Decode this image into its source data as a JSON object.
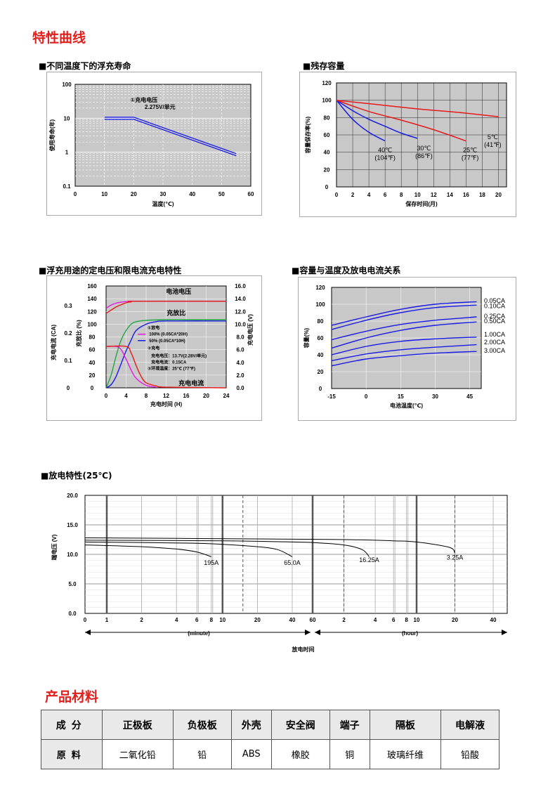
{
  "section_titles": {
    "curves": "特性曲线",
    "materials": "产品材料"
  },
  "chart_data": [
    {
      "id": "float_life",
      "type": "line",
      "title": "■不同温度下的浮充寿命",
      "xlabel": "温度(℃)",
      "ylabel": "使用寿命(年)",
      "x_ticks": [
        "0",
        "10",
        "20",
        "30",
        "40",
        "50",
        "60"
      ],
      "y_ticks": [
        "100",
        "10",
        "1",
        "0.1"
      ],
      "xlim": [
        0,
        60
      ],
      "ylim": [
        0.1,
        100
      ],
      "y_scale": "log",
      "annotation": [
        "①充电电压",
        "2.275V/单元"
      ],
      "series": [
        {
          "x": [
            10,
            20,
            55
          ],
          "y": [
            10,
            10,
            0.85
          ],
          "color": "#1a1ae6"
        }
      ]
    },
    {
      "id": "residual_capacity",
      "type": "line",
      "title": "■残存容量",
      "xlabel": "保存时间(月)",
      "ylabel": "容量保存率(%)",
      "x_ticks": [
        "0",
        "2",
        "4",
        "6",
        "8",
        "10",
        "12",
        "14",
        "16",
        "18",
        "20"
      ],
      "y_ticks": [
        "120",
        "100",
        "80",
        "60",
        "40",
        "20",
        "0"
      ],
      "xlim": [
        0,
        21
      ],
      "ylim": [
        0,
        120
      ],
      "series": [
        {
          "name_lines": [
            "40℃",
            "(104℉)"
          ],
          "color": "#1a1ae6",
          "x": [
            0,
            2,
            4,
            6
          ],
          "y": [
            100,
            78,
            63,
            53
          ]
        },
        {
          "name_lines": [
            "30℃",
            "(86℉)"
          ],
          "color": "#1a1ae6",
          "x": [
            0,
            2,
            4,
            6,
            8,
            10
          ],
          "y": [
            100,
            88,
            78,
            70,
            62,
            56
          ]
        },
        {
          "name_lines": [
            "25℃",
            "(77℉)"
          ],
          "color": "#e61a1a",
          "x": [
            0,
            4,
            8,
            12,
            16
          ],
          "y": [
            100,
            87,
            77,
            66,
            53
          ]
        },
        {
          "name_lines": [
            "5℃",
            "(41℉)"
          ],
          "color": "#e61a1a",
          "x": [
            0,
            5,
            10,
            15,
            20
          ],
          "y": [
            100,
            95,
            90,
            86,
            81
          ]
        }
      ]
    },
    {
      "id": "float_charge",
      "type": "line",
      "title": "■浮充用途的定电压和限电流充电特性",
      "xlabel": "充电时间 (H)",
      "ylabel_left_outer": "充电电流 (CA)",
      "ylabel_left": "充放比 (%)",
      "ylabel_right": "充电电压 (V)",
      "x_ticks": [
        "0",
        "4",
        "8",
        "12",
        "16",
        "20",
        "24"
      ],
      "y_ticks_left": [
        "160",
        "140",
        "120",
        "100",
        "80",
        "60",
        "40",
        "20",
        "0"
      ],
      "y_ticks_ca": [
        "0.3",
        "0.2",
        "0.1",
        "0"
      ],
      "y_ticks_right": [
        "16.0",
        "14.0",
        "12.0",
        "10.0",
        "8.0",
        "6.0",
        "4.0",
        "2.0",
        "0.0"
      ],
      "xlim": [
        0,
        24
      ],
      "ylim": [
        0,
        160
      ],
      "labels": {
        "voltage": "电池电压",
        "ratio": "充放比",
        "current": "充电电流"
      },
      "legend_lines": [
        "①放电",
        "100% (0.05CA*20H)",
        "50% (0.05CA*10H)",
        "②充电",
        "充电电压：13.7V(2.28V/单元)",
        "充电电流：0.15CA",
        "③环境温度：25℃ (77℉)"
      ],
      "series": [
        {
          "key": "v100",
          "color": "#e619e6",
          "x": [
            0,
            1,
            2,
            3,
            4,
            5,
            6,
            24
          ],
          "y": [
            125,
            130,
            133,
            134.5,
            135.5,
            136,
            136,
            136
          ]
        },
        {
          "key": "v50",
          "color": "#e61a1a",
          "x": [
            0,
            1,
            2,
            3,
            4,
            5,
            6,
            24
          ],
          "y": [
            117,
            122,
            127,
            130.5,
            133.5,
            135,
            136,
            136
          ]
        },
        {
          "key": "ratio100",
          "color": "#20a840",
          "x": [
            0,
            1,
            2,
            3,
            4,
            5,
            6,
            8,
            12,
            16,
            24
          ],
          "y": [
            0,
            20,
            50,
            75,
            90,
            100,
            104,
            106,
            107,
            107,
            107
          ]
        },
        {
          "key": "ratio50",
          "color": "#1a1ae6",
          "x": [
            0,
            1,
            2,
            3,
            4,
            5,
            6,
            8,
            10,
            12,
            24
          ],
          "y": [
            0,
            5,
            18,
            38,
            58,
            75,
            90,
            100,
            104,
            105,
            105
          ]
        },
        {
          "key": "cur100",
          "color": "#e619e6",
          "x": [
            0,
            2,
            3,
            4,
            5,
            6,
            8,
            10
          ],
          "y": [
            65,
            65,
            60,
            45,
            28,
            15,
            4,
            1
          ]
        },
        {
          "key": "cur50",
          "color": "#e61a1a",
          "x": [
            0,
            4,
            5,
            6,
            7,
            8,
            10,
            12,
            24
          ],
          "y": [
            65,
            65,
            55,
            35,
            18,
            8,
            3,
            1,
            0
          ]
        }
      ]
    },
    {
      "id": "capacity_temp",
      "type": "line",
      "title": "■容量与温度及放电电流关系",
      "xlabel": "电池温度(℃)",
      "ylabel": "容量(%)",
      "x_ticks": [
        "-15",
        "0",
        "15",
        "30",
        "45"
      ],
      "y_ticks": [
        "120",
        "100",
        "80",
        "60",
        "40",
        "20",
        "0"
      ],
      "xlim": [
        -15,
        50
      ],
      "ylim": [
        0,
        120
      ],
      "series": [
        {
          "name": "0.05CA",
          "x": [
            -15,
            0,
            15,
            30,
            48
          ],
          "y": [
            75,
            85,
            94,
            100,
            103
          ]
        },
        {
          "name": "0.10CA",
          "x": [
            -15,
            0,
            15,
            30,
            48
          ],
          "y": [
            70,
            81,
            90,
            96,
            99
          ]
        },
        {
          "name": "0.25CA",
          "x": [
            -15,
            0,
            15,
            30,
            48
          ],
          "y": [
            58,
            68,
            76,
            81,
            85
          ]
        },
        {
          "name": "0.50CA",
          "x": [
            -15,
            0,
            15,
            30,
            48
          ],
          "y": [
            48,
            60,
            69,
            75,
            79
          ]
        },
        {
          "name": "1.00CA",
          "x": [
            -15,
            0,
            15,
            30,
            48
          ],
          "y": [
            40,
            50,
            56,
            59,
            61
          ]
        },
        {
          "name": "2.00CA",
          "x": [
            -15,
            0,
            15,
            30,
            48
          ],
          "y": [
            33,
            41,
            46,
            49,
            52
          ]
        },
        {
          "name": "3.00CA",
          "x": [
            -15,
            0,
            15,
            30,
            48
          ],
          "y": [
            27,
            35,
            39,
            42,
            44
          ]
        }
      ]
    },
    {
      "id": "discharge",
      "type": "line",
      "title": "■放电特性(25℃)",
      "xlabel": "放电时间",
      "ylabel": "端电压 (V)",
      "y_ticks": [
        "20.0",
        "15.0",
        "10.0",
        "5.0",
        "0.0"
      ],
      "ylim": [
        0,
        20
      ],
      "x_tick_labels": [
        "0",
        "1",
        "2",
        "4",
        "6",
        "8",
        "10",
        "20",
        "40",
        "60",
        "2",
        "4",
        "6",
        "8",
        "10",
        "20",
        "40"
      ],
      "x_minutes": [
        0,
        1,
        2,
        4,
        6,
        8,
        10,
        20,
        40,
        60,
        120,
        240,
        360,
        480,
        600,
        1200,
        2400
      ],
      "x_unit_labels": {
        "minute": "(minute)",
        "hour": "(hour)"
      },
      "series": [
        {
          "name": "195A",
          "x": [
            0,
            2,
            4,
            6,
            8
          ],
          "y": [
            11.6,
            11.3,
            10.9,
            10.4,
            9.6
          ]
        },
        {
          "name": "65.0A",
          "x": [
            0,
            5,
            10,
            20,
            30,
            40
          ],
          "y": [
            12.1,
            11.9,
            11.7,
            11.3,
            10.8,
            9.6
          ]
        },
        {
          "name": "16.25A",
          "x": [
            0,
            10,
            30,
            60,
            120,
            180,
            210
          ],
          "y": [
            12.4,
            12.3,
            12.15,
            12.0,
            11.6,
            10.8,
            9.6
          ]
        },
        {
          "name": "3.25A",
          "x": [
            0,
            30,
            120,
            360,
            600,
            1080,
            1200
          ],
          "y": [
            12.8,
            12.6,
            12.5,
            12.3,
            12.1,
            11.2,
            10.2
          ]
        }
      ]
    }
  ],
  "materials_table": {
    "header": [
      "成分",
      "正极板",
      "负极板",
      "外壳",
      "安全阀",
      "端子",
      "隔板",
      "电解液"
    ],
    "row": [
      "原料",
      "二氧化铅",
      "铅",
      "ABS",
      "橡胶",
      "铜",
      "玻璃纤维",
      "铅酸"
    ]
  }
}
